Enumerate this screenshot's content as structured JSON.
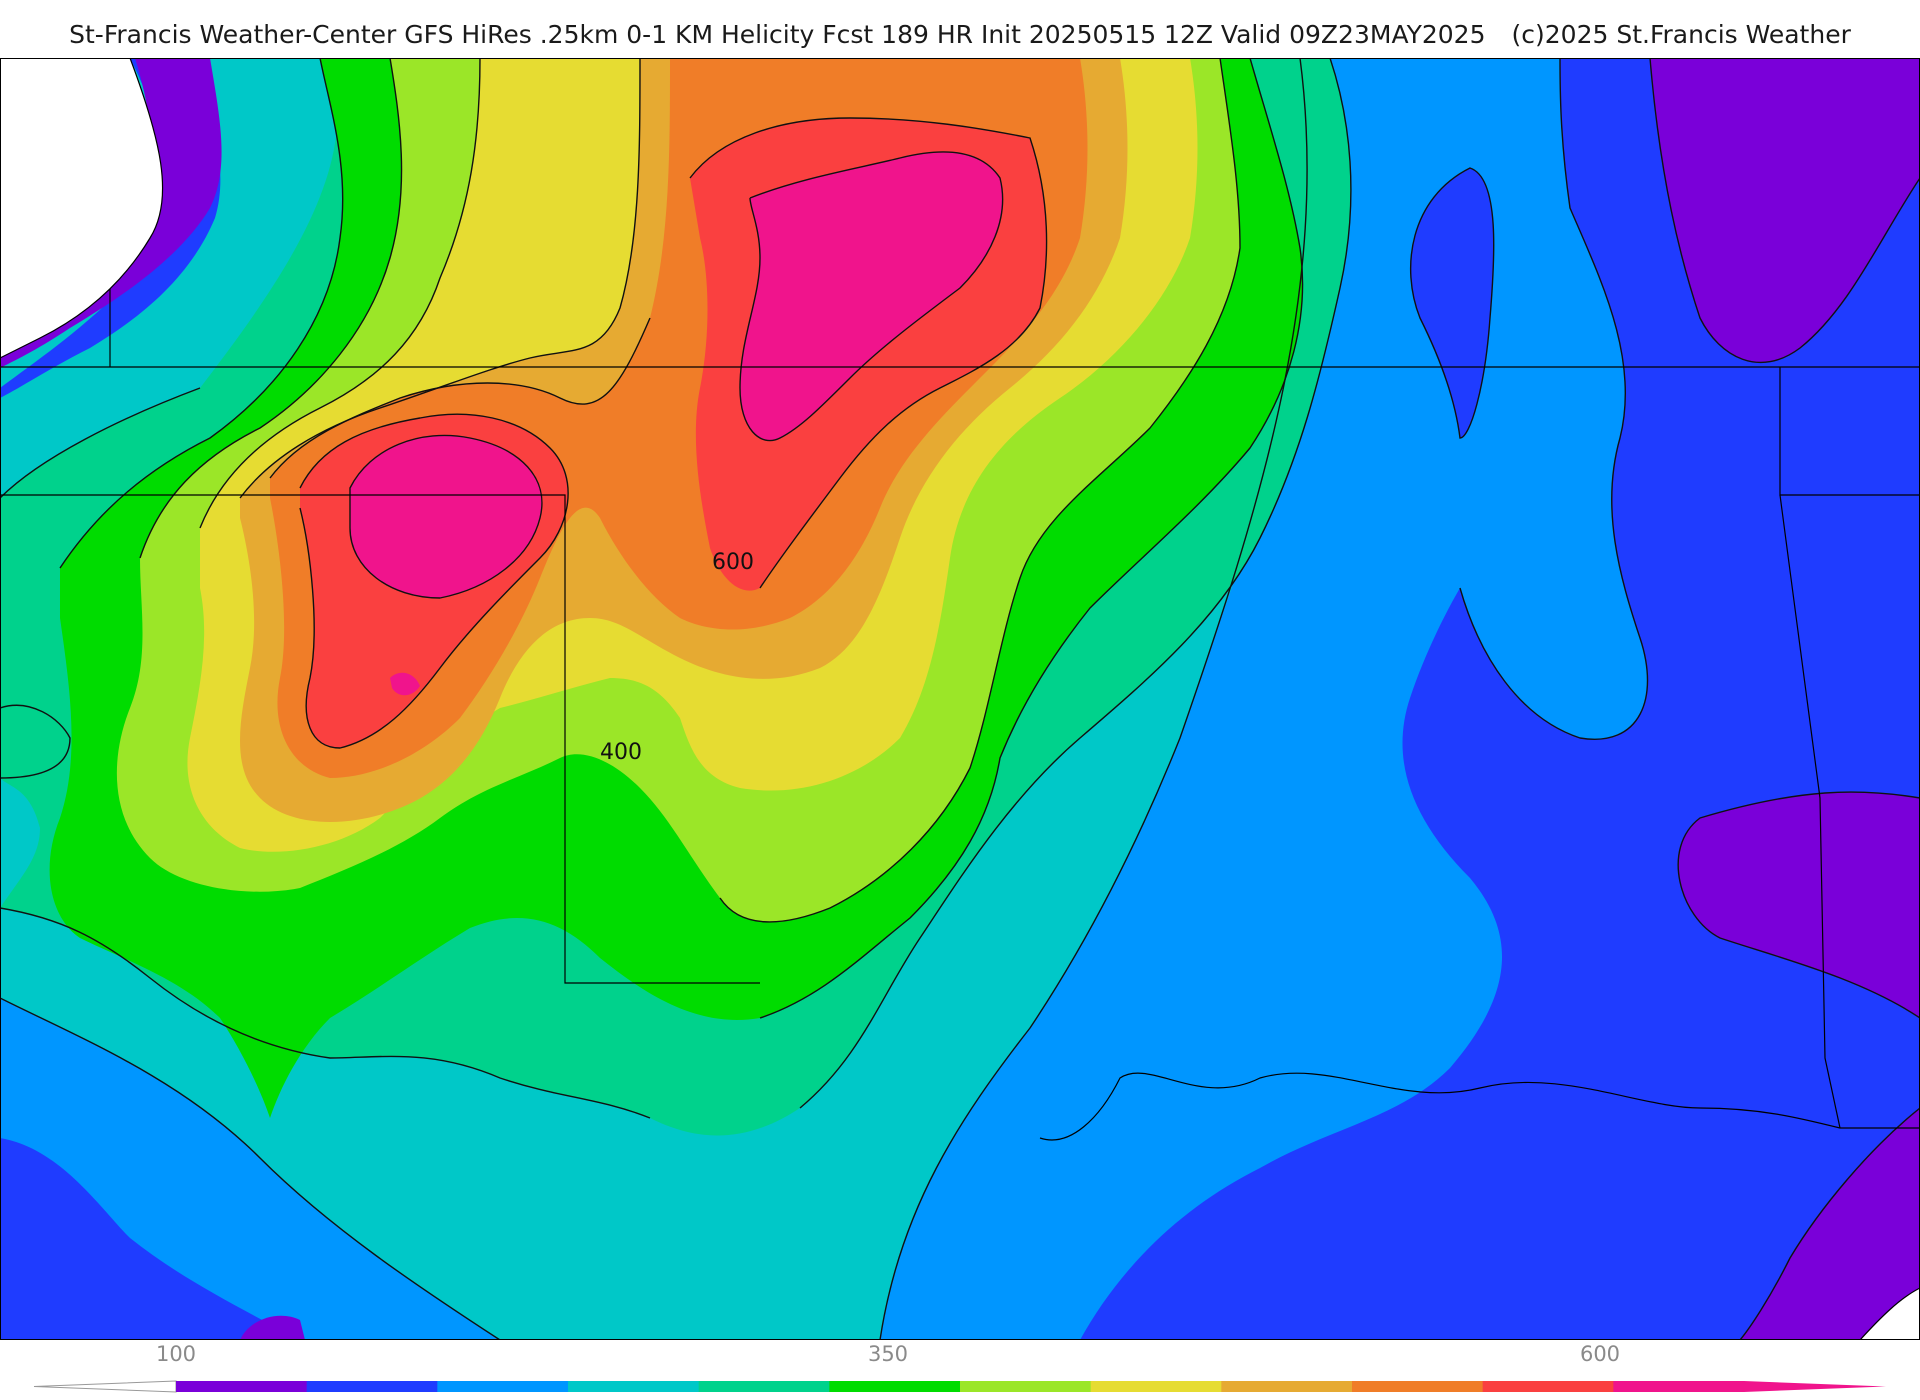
{
  "header": {
    "title": "St-Francis Weather-Center GFS HiRes .25km 0-1 KM Helicity Fcst 189 HR Init 20250515 12Z  Valid 09Z23MAY2025",
    "copyright": "(c)2025 St.Francis Weather"
  },
  "map": {
    "field": "0-1 KM Helicity",
    "contour_labels": [
      "600",
      "400"
    ]
  },
  "colorbar": {
    "tick_labels": [
      "100",
      "350",
      "600"
    ],
    "colors": [
      "#7a00d9",
      "#1f3cff",
      "#0096ff",
      "#00c8c8",
      "#00d28c",
      "#00dc00",
      "#9be628",
      "#e6dc32",
      "#e6aa32",
      "#f07d28",
      "#fa4040",
      "#f0148c"
    ]
  }
}
